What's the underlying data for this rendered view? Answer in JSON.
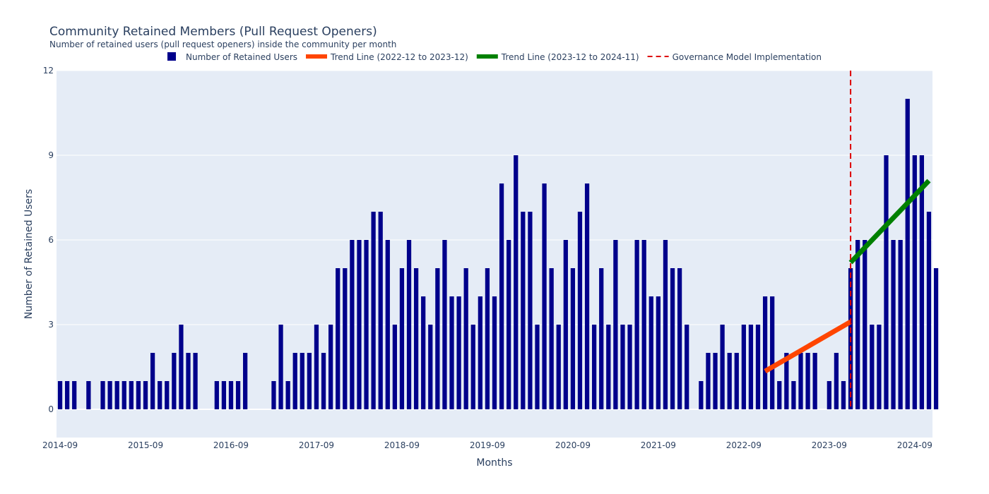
{
  "chart_data": {
    "type": "bar",
    "title": "Community Retained Members (Pull Request Openers)",
    "subtitle": "Number of retained users (pull request openers) inside the community per month",
    "xlabel": "Months",
    "ylabel": "Number of Retained Users",
    "x_start": "2014-09",
    "x_end": "2024-11",
    "xlim": [
      "2014-09",
      "2024-12"
    ],
    "ylim": [
      -1,
      12
    ],
    "yticks": [
      0,
      3,
      6,
      9,
      12
    ],
    "xticks": [
      "2014-09",
      "2015-09",
      "2016-09",
      "2017-09",
      "2018-09",
      "2019-09",
      "2020-09",
      "2021-09",
      "2022-09",
      "2023-09",
      "2024-09"
    ],
    "legend_position": "top",
    "grid": true,
    "series": [
      {
        "name": "Number of Retained Users",
        "type": "bar",
        "color": "#00008b",
        "values": [
          1,
          1,
          1,
          0,
          1,
          0,
          1,
          1,
          1,
          1,
          1,
          1,
          1,
          2,
          1,
          1,
          2,
          3,
          2,
          2,
          0,
          0,
          1,
          1,
          1,
          1,
          2,
          0,
          0,
          0,
          1,
          3,
          1,
          2,
          2,
          2,
          3,
          2,
          3,
          5,
          5,
          6,
          6,
          6,
          7,
          7,
          6,
          3,
          5,
          6,
          5,
          4,
          3,
          5,
          6,
          4,
          4,
          5,
          3,
          4,
          5,
          4,
          8,
          6,
          9,
          7,
          7,
          3,
          8,
          5,
          3,
          6,
          5,
          7,
          8,
          3,
          5,
          3,
          6,
          3,
          3,
          6,
          6,
          4,
          4,
          6,
          5,
          5,
          3,
          0,
          1,
          2,
          2,
          3,
          2,
          2,
          3,
          3,
          3,
          4,
          4,
          1,
          2,
          1,
          2,
          2,
          2,
          0,
          1,
          2,
          1,
          5,
          6,
          6,
          3,
          3,
          9,
          6,
          6,
          11,
          9,
          9,
          7,
          5
        ]
      },
      {
        "name": "Trend Line (2022-12 to 2023-12)",
        "type": "line",
        "color": "#ff4500",
        "points": [
          [
            "2022-12",
            1.35
          ],
          [
            "2023-12",
            3.1
          ]
        ]
      },
      {
        "name": "Trend Line (2023-12 to 2024-11)",
        "type": "line",
        "color": "#008000",
        "points": [
          [
            "2023-12",
            5.2
          ],
          [
            "2024-11",
            8.1
          ]
        ]
      },
      {
        "name": "Governance Model Implementation",
        "type": "vline",
        "color": "#dd0000",
        "x": "2023-12"
      }
    ],
    "colors": {
      "plot_bg": "#e5ecf6",
      "grid": "#ffffff",
      "text": "#2a3f5f"
    }
  }
}
